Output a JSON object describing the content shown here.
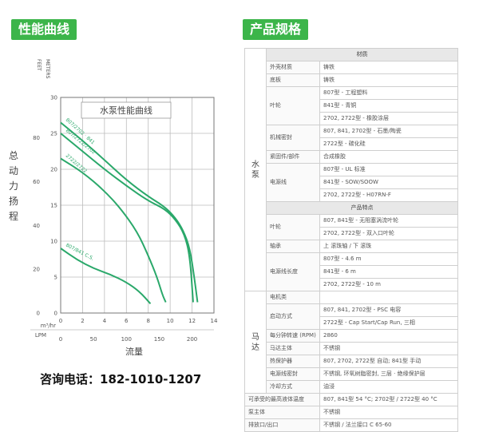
{
  "sections": {
    "performance_title": "性能曲线",
    "spec_title": "产品规格"
  },
  "chart_data": {
    "type": "line",
    "title": "水泵性能曲线",
    "ylabel": "总动力扬程",
    "ylabel_units": [
      "FEET",
      "METERS"
    ],
    "xlabel": "流量",
    "xlabel_units": [
      "m³/hr",
      "LPM"
    ],
    "y_meters_ticks": [
      0,
      5,
      10,
      15,
      20,
      25,
      30
    ],
    "y_feet_ticks": [
      0,
      20,
      40,
      60,
      80
    ],
    "x_m3hr_ticks": [
      0,
      2,
      4,
      6,
      8,
      10,
      12,
      14
    ],
    "x_lpm_ticks": [
      0,
      50,
      100,
      150,
      200
    ],
    "xlim": [
      0,
      14
    ],
    "ylim": [
      0,
      30
    ],
    "series": [
      {
        "name": "807/2702 · 841",
        "x": [
          0,
          2,
          4,
          6,
          8,
          9.5,
          10.5,
          11.2,
          11.8,
          12.2,
          12.5
        ],
        "y": [
          26.5,
          24,
          21.3,
          18.5,
          16.2,
          14.8,
          13.2,
          11.5,
          9,
          5,
          1.5
        ]
      },
      {
        "name": "807/2722/2702",
        "x": [
          0,
          2,
          4,
          6,
          8,
          9.5,
          10.5,
          11.3,
          11.8,
          12.1
        ],
        "y": [
          25,
          22.5,
          20,
          17.7,
          15.6,
          14.5,
          13,
          11,
          8,
          1.5
        ]
      },
      {
        "name": "2722/2722",
        "x": [
          0,
          2,
          4,
          5.5,
          7,
          8,
          8.8,
          9.3,
          9.6
        ],
        "y": [
          21.5,
          19.6,
          17,
          14.5,
          11.3,
          8,
          5,
          2.5,
          1.5
        ]
      },
      {
        "name": "807/841 C.S.",
        "x": [
          0,
          1.5,
          3,
          4.5,
          6,
          7.2,
          8.2
        ],
        "y": [
          9,
          7.4,
          6.2,
          5.4,
          4.3,
          3,
          1.3
        ]
      }
    ]
  },
  "contact": "咨询电话：182-1010-1207",
  "spec": {
    "groups": [
      {
        "name": "水泵",
        "rows": [
          {
            "type": "head",
            "text": "材质"
          },
          {
            "label": "外壳材质",
            "values": [
              "铸铁"
            ]
          },
          {
            "label": "底板",
            "values": [
              "铸铁"
            ]
          },
          {
            "label": "叶轮",
            "values": [
              "807型 - 工程塑料",
              "841型 - 青铜",
              "2702, 2722型 - 橡胶涂层"
            ]
          },
          {
            "label": "机械密封",
            "values": [
              "807, 841, 2702型 - 石墨/陶瓷",
              "2722型 - 碳化硅"
            ]
          },
          {
            "label": "紧固件/部件",
            "values": [
              "合成橡胶"
            ]
          },
          {
            "label": "电源线",
            "values": [
              "807型 - UL 标准",
              "841型 - SOW/SOOW",
              "2702, 2722型 - H07RN-F"
            ]
          },
          {
            "type": "head",
            "text": "产品特点"
          },
          {
            "label": "叶轮",
            "values": [
              "807, 841型 - 无阻塞涡流叶轮",
              "2702, 2722型 - 双入口叶轮"
            ]
          },
          {
            "label": "轴承",
            "values": [
              "上 滚珠轴 / 下 滚珠"
            ]
          },
          {
            "label": "电源线长度",
            "values": [
              "807型 - 4.6 m",
              "841型 - 6 m",
              "2702, 2722型 - 10 m"
            ]
          }
        ]
      },
      {
        "name": "马达",
        "rows": [
          {
            "label": "电机类",
            "values": [
              ""
            ]
          },
          {
            "label": "启动方式",
            "values": [
              "807, 841, 2702型 - PSC 电容",
              "2722型 - Cap Start/Cap Run, 三相"
            ]
          },
          {
            "label": "每分钟转速 (RPM)",
            "values": [
              "2860"
            ]
          },
          {
            "label": "马达主体",
            "values": [
              "不锈钢"
            ]
          },
          {
            "label": "热保护器",
            "values": [
              "807, 2702, 2722型  自动; 841型  手动"
            ]
          },
          {
            "label": "电源线密封",
            "values": [
              "不锈钢, 环氧树脂密封, 三层 · 绝缘保护层"
            ]
          },
          {
            "label": "冷却方式",
            "values": [
              "油浸"
            ]
          }
        ]
      }
    ],
    "footer": [
      {
        "label": "可承受的最高液体温度",
        "value": "807, 841型  54 °C; 2702型 / 2722型  40 °C"
      },
      {
        "label": "泵主体",
        "value": "不锈钢"
      },
      {
        "label": "排放口/出口",
        "value": "不锈钢 / 法兰接口 C 65-60"
      }
    ]
  }
}
